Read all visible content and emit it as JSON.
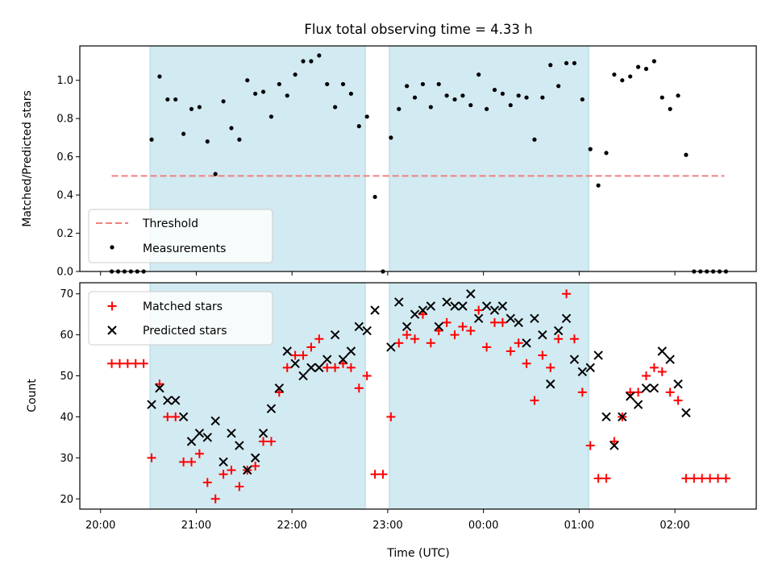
{
  "chart_data": [
    {
      "type": "scatter",
      "title": "Flux total observing time = 4.33 h",
      "ylabel": "Matched/Predicted stars",
      "xlim": [
        "19:47",
        "02:51"
      ],
      "ylim": [
        0,
        1.18
      ],
      "yticks": [
        "0.0",
        "0.2",
        "0.4",
        "0.6",
        "0.8",
        "1.0"
      ],
      "shaded_intervals": [
        [
          "20:31",
          "22:46"
        ],
        [
          "23:01",
          "01:06"
        ]
      ],
      "threshold": {
        "name": "Threshold",
        "y": 0.5,
        "x": [
          "20:07",
          "02:31"
        ],
        "color": "#f08080"
      },
      "legend": [
        "Threshold",
        "Measurements"
      ],
      "legend_position": "lower-left",
      "series": [
        {
          "name": "Measurements",
          "color": "#000000",
          "points": [
            [
              "20:07",
              0
            ],
            [
              "20:11",
              0
            ],
            [
              "20:15",
              0
            ],
            [
              "20:19",
              0
            ],
            [
              "20:23",
              0
            ],
            [
              "20:27",
              0
            ],
            [
              "20:32",
              0.69
            ],
            [
              "20:37",
              1.02
            ],
            [
              "20:42",
              0.9
            ],
            [
              "20:47",
              0.9
            ],
            [
              "20:52",
              0.72
            ],
            [
              "20:57",
              0.85
            ],
            [
              "21:02",
              0.86
            ],
            [
              "21:07",
              0.68
            ],
            [
              "21:12",
              0.51
            ],
            [
              "21:17",
              0.89
            ],
            [
              "21:22",
              0.75
            ],
            [
              "21:27",
              0.69
            ],
            [
              "21:32",
              1.0
            ],
            [
              "21:37",
              0.93
            ],
            [
              "21:42",
              0.94
            ],
            [
              "21:47",
              0.81
            ],
            [
              "21:52",
              0.98
            ],
            [
              "21:57",
              0.92
            ],
            [
              "22:02",
              1.03
            ],
            [
              "22:07",
              1.1
            ],
            [
              "22:12",
              1.1
            ],
            [
              "22:17",
              1.13
            ],
            [
              "22:22",
              0.98
            ],
            [
              "22:27",
              0.86
            ],
            [
              "22:32",
              0.98
            ],
            [
              "22:37",
              0.93
            ],
            [
              "22:42",
              0.76
            ],
            [
              "22:47",
              0.81
            ],
            [
              "22:52",
              0.39
            ],
            [
              "22:57",
              0
            ],
            [
              "23:02",
              0.7
            ],
            [
              "23:07",
              0.85
            ],
            [
              "23:12",
              0.97
            ],
            [
              "23:17",
              0.91
            ],
            [
              "23:22",
              0.98
            ],
            [
              "23:27",
              0.86
            ],
            [
              "23:32",
              0.98
            ],
            [
              "23:37",
              0.92
            ],
            [
              "23:42",
              0.9
            ],
            [
              "23:47",
              0.92
            ],
            [
              "23:52",
              0.87
            ],
            [
              "23:57",
              1.03
            ],
            [
              "00:02",
              0.85
            ],
            [
              "00:07",
              0.95
            ],
            [
              "00:12",
              0.93
            ],
            [
              "00:17",
              0.87
            ],
            [
              "00:22",
              0.92
            ],
            [
              "00:27",
              0.91
            ],
            [
              "00:32",
              0.69
            ],
            [
              "00:37",
              0.91
            ],
            [
              "00:42",
              1.08
            ],
            [
              "00:47",
              0.97
            ],
            [
              "00:52",
              1.09
            ],
            [
              "00:57",
              1.09
            ],
            [
              "01:02",
              0.9
            ],
            [
              "01:07",
              0.64
            ],
            [
              "01:12",
              0.45
            ],
            [
              "01:17",
              0.62
            ],
            [
              "01:22",
              1.03
            ],
            [
              "01:27",
              1.0
            ],
            [
              "01:32",
              1.02
            ],
            [
              "01:37",
              1.07
            ],
            [
              "01:42",
              1.06
            ],
            [
              "01:47",
              1.1
            ],
            [
              "01:52",
              0.91
            ],
            [
              "01:57",
              0.85
            ],
            [
              "02:02",
              0.92
            ],
            [
              "02:07",
              0.61
            ],
            [
              "02:12",
              0
            ],
            [
              "02:16",
              0
            ],
            [
              "02:20",
              0
            ],
            [
              "02:24",
              0
            ],
            [
              "02:28",
              0
            ],
            [
              "02:32",
              0
            ]
          ]
        }
      ]
    },
    {
      "type": "scatter",
      "ylabel": "Count",
      "xlabel": "Time (UTC)",
      "xlim": [
        "19:47",
        "02:51"
      ],
      "ylim": [
        17.5,
        72.7
      ],
      "yticks": [
        "20",
        "30",
        "40",
        "50",
        "60",
        "70"
      ],
      "xticks": [
        "20:00",
        "21:00",
        "22:00",
        "23:00",
        "00:00",
        "01:00",
        "02:00"
      ],
      "shaded_intervals": [
        [
          "20:31",
          "22:46"
        ],
        [
          "23:01",
          "01:06"
        ]
      ],
      "legend": [
        "Matched stars",
        "Predicted stars"
      ],
      "legend_position": "upper-left",
      "series": [
        {
          "name": "Matched stars",
          "marker": "+",
          "color": "#ff0000",
          "points": [
            [
              "20:07",
              53
            ],
            [
              "20:12",
              53
            ],
            [
              "20:17",
              53
            ],
            [
              "20:22",
              53
            ],
            [
              "20:27",
              53
            ],
            [
              "20:32",
              30
            ],
            [
              "20:37",
              48
            ],
            [
              "20:42",
              40
            ],
            [
              "20:47",
              40
            ],
            [
              "20:52",
              29
            ],
            [
              "20:57",
              29
            ],
            [
              "21:02",
              31
            ],
            [
              "21:07",
              24
            ],
            [
              "21:12",
              20
            ],
            [
              "21:17",
              26
            ],
            [
              "21:22",
              27
            ],
            [
              "21:27",
              23
            ],
            [
              "21:32",
              27
            ],
            [
              "21:37",
              28
            ],
            [
              "21:42",
              34
            ],
            [
              "21:47",
              34
            ],
            [
              "21:52",
              46
            ],
            [
              "21:57",
              52
            ],
            [
              "22:02",
              55
            ],
            [
              "22:07",
              55
            ],
            [
              "22:12",
              57
            ],
            [
              "22:17",
              59
            ],
            [
              "22:22",
              52
            ],
            [
              "22:27",
              52
            ],
            [
              "22:32",
              53
            ],
            [
              "22:37",
              52
            ],
            [
              "22:42",
              47
            ],
            [
              "22:47",
              50
            ],
            [
              "22:52",
              26
            ],
            [
              "22:57",
              26
            ],
            [
              "23:02",
              40
            ],
            [
              "23:07",
              58
            ],
            [
              "23:12",
              60
            ],
            [
              "23:17",
              59
            ],
            [
              "23:22",
              65
            ],
            [
              "23:27",
              58
            ],
            [
              "23:32",
              61
            ],
            [
              "23:37",
              63
            ],
            [
              "23:42",
              60
            ],
            [
              "23:47",
              62
            ],
            [
              "23:52",
              61
            ],
            [
              "23:57",
              66
            ],
            [
              "00:02",
              57
            ],
            [
              "00:07",
              63
            ],
            [
              "00:12",
              63
            ],
            [
              "00:17",
              56
            ],
            [
              "00:22",
              58
            ],
            [
              "00:27",
              53
            ],
            [
              "00:32",
              44
            ],
            [
              "00:37",
              55
            ],
            [
              "00:42",
              52
            ],
            [
              "00:47",
              59
            ],
            [
              "00:52",
              70
            ],
            [
              "00:57",
              59
            ],
            [
              "01:02",
              46
            ],
            [
              "01:07",
              33
            ],
            [
              "01:12",
              25
            ],
            [
              "01:17",
              25
            ],
            [
              "01:22",
              34
            ],
            [
              "01:27",
              40
            ],
            [
              "01:32",
              46
            ],
            [
              "01:37",
              46
            ],
            [
              "01:42",
              50
            ],
            [
              "01:47",
              52
            ],
            [
              "01:52",
              51
            ],
            [
              "01:57",
              46
            ],
            [
              "02:02",
              44
            ],
            [
              "02:07",
              25
            ],
            [
              "02:12",
              25
            ],
            [
              "02:17",
              25
            ],
            [
              "02:22",
              25
            ],
            [
              "02:27",
              25
            ],
            [
              "02:32",
              25
            ]
          ]
        },
        {
          "name": "Predicted stars",
          "marker": "x",
          "color": "#000000",
          "points": [
            [
              "20:32",
              43
            ],
            [
              "20:37",
              47
            ],
            [
              "20:42",
              44
            ],
            [
              "20:47",
              44
            ],
            [
              "20:52",
              40
            ],
            [
              "20:57",
              34
            ],
            [
              "21:02",
              36
            ],
            [
              "21:07",
              35
            ],
            [
              "21:12",
              39
            ],
            [
              "21:17",
              29
            ],
            [
              "21:22",
              36
            ],
            [
              "21:27",
              33
            ],
            [
              "21:32",
              27
            ],
            [
              "21:37",
              30
            ],
            [
              "21:42",
              36
            ],
            [
              "21:47",
              42
            ],
            [
              "21:52",
              47
            ],
            [
              "21:57",
              56
            ],
            [
              "22:02",
              53
            ],
            [
              "22:07",
              50
            ],
            [
              "22:12",
              52
            ],
            [
              "22:17",
              52
            ],
            [
              "22:22",
              54
            ],
            [
              "22:27",
              60
            ],
            [
              "22:32",
              54
            ],
            [
              "22:37",
              56
            ],
            [
              "22:42",
              62
            ],
            [
              "22:47",
              61
            ],
            [
              "22:52",
              66
            ],
            [
              "23:02",
              57
            ],
            [
              "23:07",
              68
            ],
            [
              "23:12",
              62
            ],
            [
              "23:17",
              65
            ],
            [
              "23:22",
              66
            ],
            [
              "23:27",
              67
            ],
            [
              "23:32",
              62
            ],
            [
              "23:37",
              68
            ],
            [
              "23:42",
              67
            ],
            [
              "23:47",
              67
            ],
            [
              "23:52",
              70
            ],
            [
              "23:57",
              64
            ],
            [
              "00:02",
              67
            ],
            [
              "00:07",
              66
            ],
            [
              "00:12",
              67
            ],
            [
              "00:17",
              64
            ],
            [
              "00:22",
              63
            ],
            [
              "00:27",
              58
            ],
            [
              "00:32",
              64
            ],
            [
              "00:37",
              60
            ],
            [
              "00:42",
              48
            ],
            [
              "00:47",
              61
            ],
            [
              "00:52",
              64
            ],
            [
              "00:57",
              54
            ],
            [
              "01:02",
              51
            ],
            [
              "01:07",
              52
            ],
            [
              "01:12",
              55
            ],
            [
              "01:17",
              40
            ],
            [
              "01:22",
              33
            ],
            [
              "01:27",
              40
            ],
            [
              "01:32",
              45
            ],
            [
              "01:37",
              43
            ],
            [
              "01:42",
              47
            ],
            [
              "01:47",
              47
            ],
            [
              "01:52",
              56
            ],
            [
              "01:57",
              54
            ],
            [
              "02:02",
              48
            ],
            [
              "02:07",
              41
            ]
          ]
        }
      ]
    }
  ],
  "colors": {
    "shade": "#add8e6",
    "threshold": "#f08080",
    "matched": "#ff0000",
    "predicted": "#000000",
    "measurement": "#000000"
  }
}
